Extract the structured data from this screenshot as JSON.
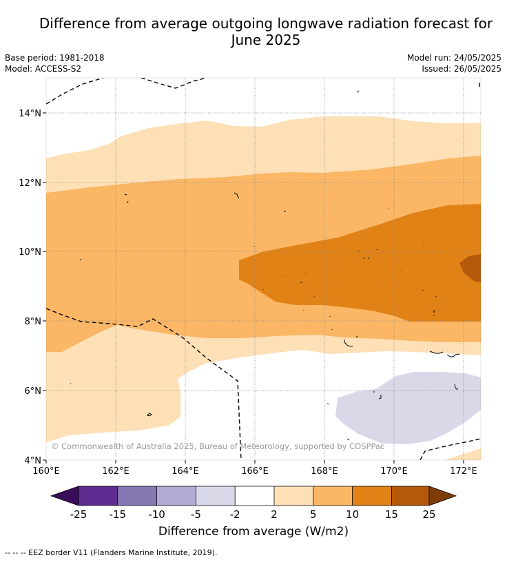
{
  "title_line1": "Difference from average outgoing longwave radiation forecast for",
  "title_line2": "June 2025",
  "meta": {
    "base_period": "Base period: 1981-2018",
    "model": "Model: ACCESS-S2",
    "model_run": "Model run: 24/05/2025",
    "issued": "Issued: 26/05/2025"
  },
  "map": {
    "lon_labels": [
      "160°E",
      "162°E",
      "164°E",
      "166°E",
      "168°E",
      "170°E",
      "172°E"
    ],
    "lat_labels": [
      "14°N",
      "12°N",
      "10°N",
      "8°N",
      "6°N",
      "4°N"
    ],
    "copyright": "© Commonwealth of Australia 2025, Bureau of Meteorology, supported by COSPPac"
  },
  "colorbar": {
    "title": "Difference from average (W/m2)",
    "ticks": [
      "-25",
      "-15",
      "-10",
      "-5",
      "-2",
      "2",
      "5",
      "10",
      "15",
      "25"
    ],
    "colors": {
      "lt_neg25": "#3b0c59",
      "neg25_neg15": "#5e2c91",
      "neg15_neg10": "#8777b3",
      "neg10_neg5": "#b2aad2",
      "neg5_neg2": "#d8d8e9",
      "neg2_2": "#ffffff",
      "p2_5": "#fde0b6",
      "p5_10": "#fbb765",
      "p10_15": "#e08216",
      "p15_25": "#b4590b",
      "gt25": "#803c08"
    }
  },
  "footer": "-- -- -- EEZ border V11 (Flanders Marine Institute, 2019)."
}
